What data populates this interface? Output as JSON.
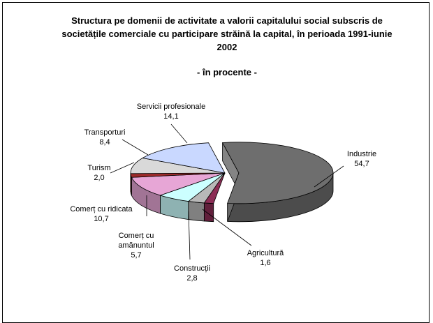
{
  "chart_data": {
    "type": "pie3d",
    "title": "Structura pe domenii de activitate a valorii capitalului social subscris de societățile comerciale cu participare străină la capital, în perioada 1991-iunie 2002",
    "subtitle": "- în procente -",
    "categories": [
      "Industrie",
      "Agricultură",
      "Construcții",
      "Comerț cu amănuntul",
      "Comerț cu ridicata",
      "Turism",
      "Transporturi",
      "Servicii profesionale"
    ],
    "values": [
      54.7,
      1.6,
      2.8,
      5.7,
      10.7,
      2.0,
      8.4,
      14.1
    ],
    "value_labels": [
      "54,7",
      "1,6",
      "2,8",
      "5,7",
      "10,7",
      "2,0",
      "8,4",
      "14,1"
    ],
    "colors": [
      "#6e6e6e",
      "#8c2d55",
      "#b8b8b8",
      "#ccffff",
      "#e7a6d6",
      "#9c2a2a",
      "#d9d9d9",
      "#c9d8ff"
    ]
  }
}
